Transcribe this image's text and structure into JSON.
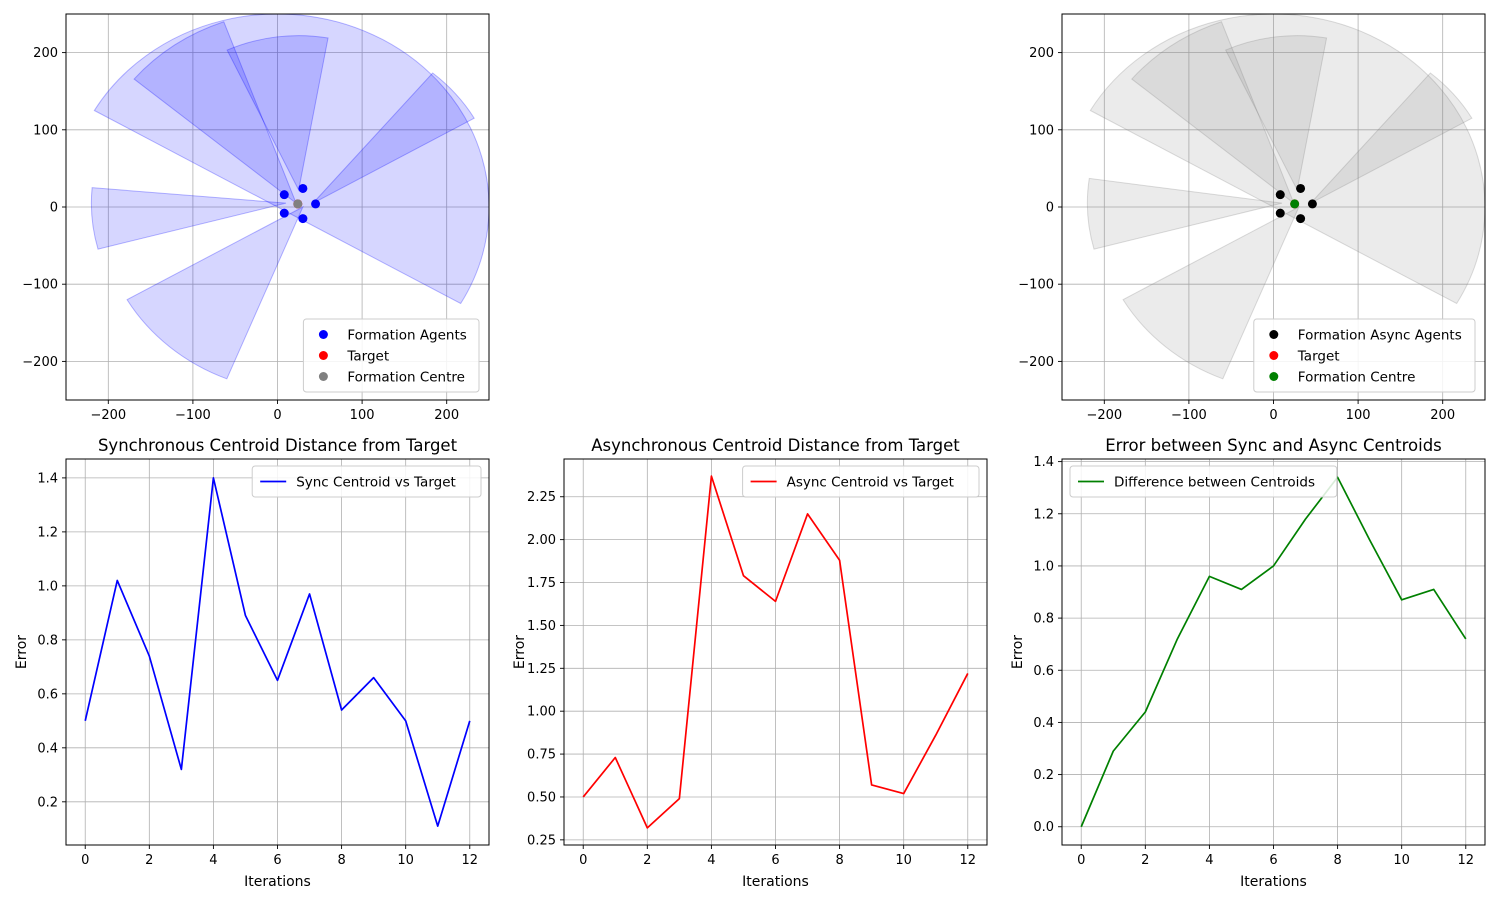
{
  "colors": {
    "sync_sectors": "#0000ff",
    "async_sectors": "#808080",
    "grid": "#b0b0b0"
  },
  "chart_data": [
    {
      "id": "sync-formation",
      "type": "scatter",
      "title": "",
      "xlim": [
        -250,
        250
      ],
      "ylim": [
        -250,
        250
      ],
      "xticks": [
        -200,
        -100,
        0,
        100,
        200
      ],
      "yticks": [
        -200,
        -100,
        0,
        100,
        200
      ],
      "tick_labels_x": [
        "−200",
        "−100",
        "0",
        "100",
        "200"
      ],
      "tick_labels_y": [
        "−200",
        "−100",
        "0",
        "100",
        "200"
      ],
      "grid": true,
      "legend": "lower right",
      "sector_color": "#0000ff",
      "sectors": [
        {
          "cx": 0,
          "cy": 0,
          "r": 250,
          "start": -30,
          "end": 150
        },
        {
          "cx": 25,
          "cy": 22,
          "r": 200,
          "start": 80,
          "end": 115
        },
        {
          "cx": 22,
          "cy": 5,
          "r": 250,
          "start": 110,
          "end": 140
        },
        {
          "cx": 10,
          "cy": 5,
          "r": 230,
          "start": 175,
          "end": 195
        },
        {
          "cx": 30,
          "cy": 0,
          "r": 240,
          "start": 210,
          "end": 248
        },
        {
          "cx": 42,
          "cy": 5,
          "r": 220,
          "start": 30,
          "end": 50
        }
      ],
      "series": [
        {
          "name": "Formation Agents",
          "color": "#0000ff",
          "points": [
            [
              8,
              16
            ],
            [
              30,
              24
            ],
            [
              8,
              -8
            ],
            [
              30,
              -15
            ],
            [
              45,
              4
            ]
          ]
        },
        {
          "name": "Target",
          "color": "#ff0000",
          "points": [
            [
              24,
              4
            ]
          ]
        },
        {
          "name": "Formation Centre",
          "color": "#808080",
          "points": [
            [
              24,
              4
            ]
          ]
        }
      ]
    },
    {
      "id": "async-formation",
      "type": "scatter",
      "title": "",
      "xlim": [
        -250,
        250
      ],
      "ylim": [
        -250,
        250
      ],
      "xticks": [
        -200,
        -100,
        0,
        100,
        200
      ],
      "yticks": [
        -200,
        -100,
        0,
        100,
        200
      ],
      "tick_labels_x": [
        "−200",
        "−100",
        "0",
        "100",
        "200"
      ],
      "tick_labels_y": [
        "−200",
        "−100",
        "0",
        "100",
        "200"
      ],
      "grid": true,
      "legend": "lower right",
      "sector_color": "#808080",
      "sectors": [
        {
          "cx": 0,
          "cy": 0,
          "r": 250,
          "start": -30,
          "end": 150
        },
        {
          "cx": 28,
          "cy": 22,
          "r": 200,
          "start": 80,
          "end": 115
        },
        {
          "cx": 24,
          "cy": 5,
          "r": 250,
          "start": 110,
          "end": 140
        },
        {
          "cx": 10,
          "cy": 5,
          "r": 230,
          "start": 172,
          "end": 195
        },
        {
          "cx": 30,
          "cy": 0,
          "r": 240,
          "start": 210,
          "end": 248
        },
        {
          "cx": 44,
          "cy": 5,
          "r": 220,
          "start": 30,
          "end": 50
        }
      ],
      "series": [
        {
          "name": "Formation Async Agents",
          "color": "#000000",
          "points": [
            [
              8,
              16
            ],
            [
              32,
              24
            ],
            [
              8,
              -8
            ],
            [
              32,
              -15
            ],
            [
              46,
              4
            ]
          ]
        },
        {
          "name": "Target",
          "color": "#ff0000",
          "points": [
            [
              25,
              4
            ]
          ]
        },
        {
          "name": "Formation Centre",
          "color": "#008000",
          "points": [
            [
              25,
              4
            ]
          ]
        }
      ]
    },
    {
      "id": "sync-error",
      "type": "line",
      "title": "Synchronous Centroid Distance from Target",
      "xlabel": "Iterations",
      "ylabel": "Error",
      "xlim": [
        -0.6,
        12.6
      ],
      "ylim": [
        0.04,
        1.47
      ],
      "xticks": [
        0,
        2,
        4,
        6,
        8,
        10,
        12
      ],
      "yticks": [
        0.2,
        0.4,
        0.6,
        0.8,
        1.0,
        1.2,
        1.4
      ],
      "tick_labels_x": [
        "0",
        "2",
        "4",
        "6",
        "8",
        "10",
        "12"
      ],
      "tick_labels_y": [
        "0.2",
        "0.4",
        "0.6",
        "0.8",
        "1.0",
        "1.2",
        "1.4"
      ],
      "grid": true,
      "legend": "upper right",
      "x": [
        0,
        1,
        2,
        3,
        4,
        5,
        6,
        7,
        8,
        9,
        10,
        11,
        12
      ],
      "series": [
        {
          "name": "Sync Centroid vs Target",
          "color": "#0000ff",
          "values": [
            0.5,
            1.02,
            0.74,
            0.32,
            1.4,
            0.89,
            0.65,
            0.97,
            0.54,
            0.66,
            0.5,
            0.11,
            0.5
          ]
        }
      ]
    },
    {
      "id": "async-error",
      "type": "line",
      "title": "Asynchronous Centroid Distance from Target",
      "xlabel": "Iterations",
      "ylabel": "Error",
      "xlim": [
        -0.6,
        12.6
      ],
      "ylim": [
        0.22,
        2.47
      ],
      "xticks": [
        0,
        2,
        4,
        6,
        8,
        10,
        12
      ],
      "yticks": [
        0.25,
        0.5,
        0.75,
        1.0,
        1.25,
        1.5,
        1.75,
        2.0,
        2.25
      ],
      "tick_labels_x": [
        "0",
        "2",
        "4",
        "6",
        "8",
        "10",
        "12"
      ],
      "tick_labels_y": [
        "0.25",
        "0.50",
        "0.75",
        "1.00",
        "1.25",
        "1.50",
        "1.75",
        "2.00",
        "2.25"
      ],
      "grid": true,
      "legend": "upper right",
      "x": [
        0,
        1,
        2,
        3,
        4,
        5,
        6,
        7,
        8,
        9,
        10,
        11,
        12
      ],
      "series": [
        {
          "name": "Async Centroid vs Target",
          "color": "#ff0000",
          "values": [
            0.5,
            0.73,
            0.32,
            0.49,
            2.37,
            1.79,
            1.64,
            2.15,
            1.88,
            0.57,
            0.52,
            0.86,
            1.22
          ]
        }
      ]
    },
    {
      "id": "difference",
      "type": "line",
      "title": "Error between Sync and Async Centroids",
      "xlabel": "Iterations",
      "ylabel": "Error",
      "xlim": [
        -0.6,
        12.6
      ],
      "ylim": [
        -0.07,
        1.41
      ],
      "xticks": [
        0,
        2,
        4,
        6,
        8,
        10,
        12
      ],
      "yticks": [
        0.0,
        0.2,
        0.4,
        0.6,
        0.8,
        1.0,
        1.2,
        1.4
      ],
      "tick_labels_x": [
        "0",
        "2",
        "4",
        "6",
        "8",
        "10",
        "12"
      ],
      "tick_labels_y": [
        "0.0",
        "0.2",
        "0.4",
        "0.6",
        "0.8",
        "1.0",
        "1.2",
        "1.4"
      ],
      "grid": true,
      "legend": "upper left",
      "x": [
        0,
        1,
        2,
        3,
        4,
        5,
        6,
        7,
        8,
        9,
        10,
        11,
        12
      ],
      "series": [
        {
          "name": "Difference between Centroids",
          "color": "#008000",
          "values": [
            0.0,
            0.29,
            0.44,
            0.72,
            0.96,
            0.91,
            1.0,
            1.18,
            1.34,
            1.1,
            0.87,
            0.91,
            0.72
          ]
        }
      ]
    }
  ]
}
